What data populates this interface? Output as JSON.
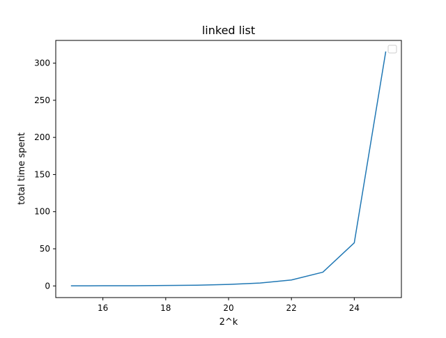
{
  "chart_data": {
    "type": "line",
    "title": "linked list",
    "xlabel": "2^k",
    "ylabel": "total time spent",
    "xlim": [
      14.5,
      25.5
    ],
    "ylim": [
      -15.7,
      330.6
    ],
    "xticks": [
      16,
      18,
      20,
      22,
      24
    ],
    "yticks": [
      0,
      50,
      100,
      150,
      200,
      250,
      300
    ],
    "grid": false,
    "legend": {
      "position": "top-right",
      "entries": []
    },
    "series": [
      {
        "color": "#1f77b4",
        "x": [
          15,
          16,
          17,
          18,
          19,
          20,
          21,
          22,
          23,
          24,
          25
        ],
        "y": [
          0.1,
          0.2,
          0.3,
          0.6,
          1.0,
          2.0,
          3.9,
          8.0,
          18.5,
          58.0,
          315.0
        ]
      }
    ]
  }
}
